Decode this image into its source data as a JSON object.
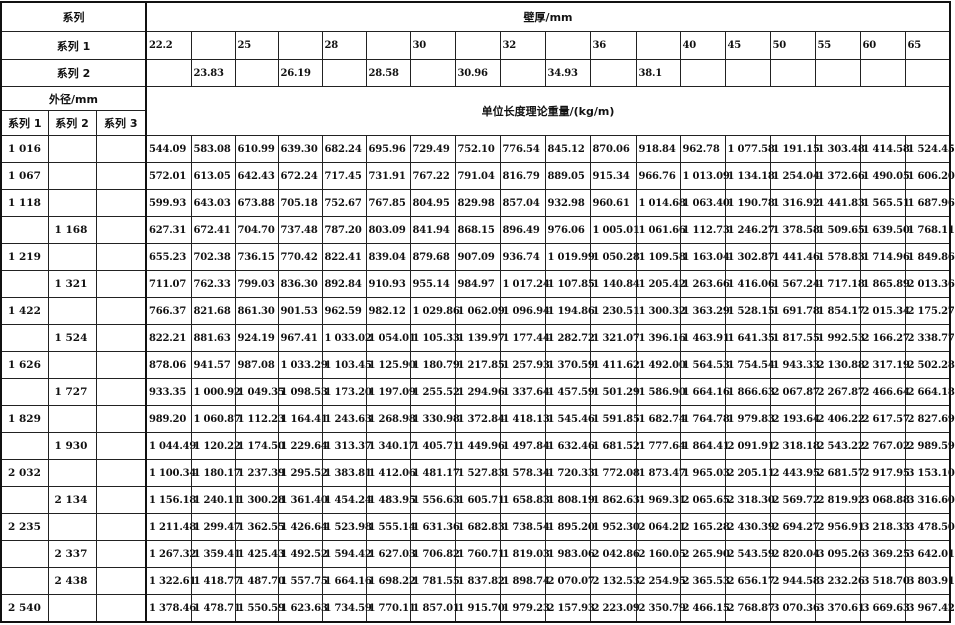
{
  "header": {
    "series": "系列",
    "wall_thickness": "壁厚/mm",
    "series1": "系列 1",
    "series2": "系列 2",
    "outer_diameter": "外径/mm",
    "unit_weight": "单位长度理论重量/(kg/m)",
    "od_series": [
      "系列 1",
      "系列 2",
      "系列 3"
    ]
  },
  "thickness_series1": [
    "22.2",
    "",
    "25",
    "",
    "28",
    "",
    "30",
    "",
    "32",
    "",
    "36",
    "",
    "40",
    "45",
    "50",
    "55",
    "60",
    "65"
  ],
  "thickness_series2": [
    "",
    "23.83",
    "",
    "26.19",
    "",
    "28.58",
    "",
    "30.96",
    "",
    "34.93",
    "",
    "38.1",
    "",
    "",
    "",
    "",
    "",
    ""
  ],
  "rows": [
    {
      "s1": "1 016",
      "s2": "",
      "s3": "",
      "w": [
        "544.09",
        "583.08",
        "610.99",
        "639.30",
        "682.24",
        "695.96",
        "729.49",
        "752.10",
        "776.54",
        "845.12",
        "870.06",
        "918.84",
        "962.78",
        "1 077.58",
        "1 191.15",
        "1 303.48",
        "1 414.58",
        "1 524.45"
      ]
    },
    {
      "s1": "1 067",
      "s2": "",
      "s3": "",
      "w": [
        "572.01",
        "613.05",
        "642.43",
        "672.24",
        "717.45",
        "731.91",
        "767.22",
        "791.04",
        "816.79",
        "889.05",
        "915.34",
        "966.76",
        "1 013.09",
        "1 134.18",
        "1 254.04",
        "1 372.66",
        "1 490.05",
        "1 606.20"
      ]
    },
    {
      "s1": "1 118",
      "s2": "",
      "s3": "",
      "w": [
        "599.93",
        "643.03",
        "673.88",
        "705.18",
        "752.67",
        "767.85",
        "804.95",
        "829.98",
        "857.04",
        "932.98",
        "960.61",
        "1 014.68",
        "1 063.40",
        "1 190.78",
        "1 316.92",
        "1 441.83",
        "1 565.51",
        "1 687.96"
      ]
    },
    {
      "s1": "",
      "s2": "1 168",
      "s3": "",
      "w": [
        "627.31",
        "672.41",
        "704.70",
        "737.48",
        "787.20",
        "803.09",
        "841.94",
        "868.15",
        "896.49",
        "976.06",
        "1 005.01",
        "1 061.66",
        "1 112.73",
        "1 246.27",
        "1 378.58",
        "1 509.65",
        "1 639.50",
        "1 768.11"
      ]
    },
    {
      "s1": "1 219",
      "s2": "",
      "s3": "",
      "w": [
        "655.23",
        "702.38",
        "736.15",
        "770.42",
        "822.41",
        "839.04",
        "879.68",
        "907.09",
        "936.74",
        "1 019.99",
        "1 050.28",
        "1 109.58",
        "1 163.04",
        "1 302.87",
        "1 441.46",
        "1 578.83",
        "1 714.96",
        "1 849.86"
      ]
    },
    {
      "s1": "",
      "s2": "1 321",
      "s3": "",
      "w": [
        "711.07",
        "762.33",
        "799.03",
        "836.30",
        "892.84",
        "910.93",
        "955.14",
        "984.97",
        "1 017.24",
        "1 107.85",
        "1 140.84",
        "1 205.42",
        "1 263.66",
        "1 416.06",
        "1 567.24",
        "1 717.18",
        "1 865.89",
        "2 013.36"
      ]
    },
    {
      "s1": "1 422",
      "s2": "",
      "s3": "",
      "w": [
        "766.37",
        "821.68",
        "861.30",
        "901.53",
        "962.59",
        "982.12",
        "1 029.86",
        "1 062.09",
        "1 096.94",
        "1 194.86",
        "1 230.51",
        "1 300.32",
        "1 363.29",
        "1 528.15",
        "1 691.78",
        "1 854.17",
        "2 015.34",
        "2 175.27"
      ]
    },
    {
      "s1": "",
      "s2": "1 524",
      "s3": "",
      "w": [
        "822.21",
        "881.63",
        "924.19",
        "967.41",
        "1 033.02",
        "1 054.01",
        "1 105.33",
        "1 139.97",
        "1 177.44",
        "1 282.72",
        "1 321.07",
        "1 396.16",
        "1 463.91",
        "1 641.35",
        "1 817.55",
        "1 992.53",
        "2 166.27",
        "2 338.77"
      ]
    },
    {
      "s1": "1 626",
      "s2": "",
      "s3": "",
      "w": [
        "878.06",
        "941.57",
        "987.08",
        "1 033.29",
        "1 103.45",
        "1 125.90",
        "1 180.79",
        "1 217.85",
        "1 257.93",
        "1 370.59",
        "1 411.62",
        "1 492.00",
        "1 564.53",
        "1 754.54",
        "1 943.33",
        "2 130.88",
        "2 317.19",
        "2 502.28"
      ]
    },
    {
      "s1": "",
      "s2": "1 727",
      "s3": "",
      "w": [
        "933.35",
        "1 000.92",
        "1 049.35",
        "1 098.53",
        "1 173.20",
        "1 197.09",
        "1 255.52",
        "1 294.96",
        "1 337.64",
        "1 457.59",
        "1 501.29",
        "1 586.90",
        "1 664.16",
        "1 866.63",
        "2 067.87",
        "2 267.87",
        "2 466.64",
        "2 664.18"
      ]
    },
    {
      "s1": "1 829",
      "s2": "",
      "s3": "",
      "w": [
        "989.20",
        "1 060.87",
        "1 112.23",
        "1 164.41",
        "1 243.63",
        "1 268.98",
        "1 330.98",
        "1 372.84",
        "1 418.13",
        "1 545.46",
        "1 591.85",
        "1 682.74",
        "1 764.78",
        "1 979.83",
        "2 193.64",
        "2 406.22",
        "2 617.57",
        "2 827.69"
      ]
    },
    {
      "s1": "",
      "s2": "1 930",
      "s3": "",
      "w": [
        "1 044.49",
        "1 120.22",
        "1 174.50",
        "1 229.64",
        "1 313.37",
        "1 340.17",
        "1 405.71",
        "1 449.96",
        "1 497.84",
        "1 632.46",
        "1 681.52",
        "1 777.64",
        "1 864.41",
        "2 091.91",
        "2 318.18",
        "2 543.22",
        "2 767.02",
        "2 989.59"
      ]
    },
    {
      "s1": "2 032",
      "s2": "",
      "s3": "",
      "w": [
        "1 100.34",
        "1 180.17",
        "1 237.39",
        "1 295.52",
        "1 383.81",
        "1 412.06",
        "1 481.17",
        "1 527.83",
        "1 578.34",
        "1 720.33",
        "1 772.08",
        "1 873.47",
        "1 965.03",
        "2 205.11",
        "2 443.95",
        "2 681.57",
        "2 917.95",
        "3 153.10"
      ]
    },
    {
      "s1": "",
      "s2": "2 134",
      "s3": "",
      "w": [
        "1 156.18",
        "1 240.11",
        "1 300.28",
        "1 361.40",
        "1 454.24",
        "1 483.95",
        "1 556.63",
        "1 605.71",
        "1 658.83",
        "1 808.19",
        "1 862.63",
        "1 969.31",
        "2 065.65",
        "2 318.30",
        "2 569.72",
        "2 819.92",
        "3 068.88",
        "3 316.60"
      ]
    },
    {
      "s1": "2 235",
      "s2": "",
      "s3": "",
      "w": [
        "1 211.48",
        "1 299.47",
        "1 362.55",
        "1 426.64",
        "1 523.98",
        "1 555.14",
        "1 631.36",
        "1 682.83",
        "1 738.54",
        "1 895.20",
        "1 952.30",
        "2 064.21",
        "2 165.28",
        "2 430.39",
        "2 694.27",
        "2 956.91",
        "3 218.33",
        "3 478.50"
      ]
    },
    {
      "s1": "",
      "s2": "2 337",
      "s3": "",
      "w": [
        "1 267.32",
        "1 359.41",
        "1 425.43",
        "1 492.52",
        "1 594.42",
        "1 627.03",
        "1 706.82",
        "1 760.71",
        "1 819.03",
        "1 983.06",
        "2 042.86",
        "2 160.05",
        "2 265.90",
        "2 543.59",
        "2 820.04",
        "3 095.26",
        "3 369.25",
        "3 642.01"
      ]
    },
    {
      "s1": "",
      "s2": "2 438",
      "s3": "",
      "w": [
        "1 322.61",
        "1 418.77",
        "1 487.70",
        "1 557.75",
        "1 664.16",
        "1 698.22",
        "1 781.55",
        "1 837.82",
        "1 898.74",
        "2 070.07",
        "2 132.53",
        "2 254.95",
        "2 365.53",
        "2 656.17",
        "2 944.58",
        "3 232.26",
        "3 518.70",
        "3 803.91"
      ]
    },
    {
      "s1": "2 540",
      "s2": "",
      "s3": "",
      "w": [
        "1 378.46",
        "1 478.71",
        "1 550.59",
        "1 623.63",
        "1 734.59",
        "1 770.11",
        "1 857.01",
        "1 915.70",
        "1 979.23",
        "2 157.93",
        "2 223.09",
        "2 350.79",
        "2 466.15",
        "2 768.87",
        "3 070.36",
        "3 370.61",
        "3 669.63",
        "3 967.42"
      ]
    }
  ]
}
